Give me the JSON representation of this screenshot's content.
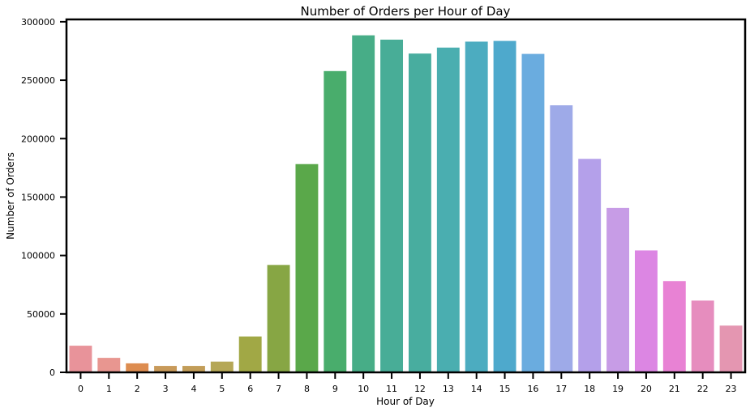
{
  "chart_data": {
    "type": "bar",
    "title": "Number of Orders per Hour of Day",
    "xlabel": "Hour of Day",
    "ylabel": "Number of Orders",
    "categories": [
      "0",
      "1",
      "2",
      "3",
      "4",
      "5",
      "6",
      "7",
      "8",
      "9",
      "10",
      "11",
      "12",
      "13",
      "14",
      "15",
      "16",
      "17",
      "18",
      "19",
      "20",
      "21",
      "22",
      "23"
    ],
    "values": [
      22800,
      12400,
      7700,
      5500,
      5500,
      9200,
      30700,
      91900,
      178200,
      257800,
      288400,
      284700,
      272800,
      277900,
      283000,
      283600,
      272500,
      228500,
      182700,
      140700,
      104300,
      78100,
      61400,
      40000
    ],
    "colors": [
      "#e8939a",
      "#e89690",
      "#dd8c50",
      "#c89a5a",
      "#c29d58",
      "#b5a756",
      "#a1a845",
      "#87a644",
      "#5aa84a",
      "#49ad6c",
      "#47ad87",
      "#48ad97",
      "#48ad9f",
      "#4aaeb0",
      "#4cacc0",
      "#4ea9cc",
      "#6aacdf",
      "#9eaae8",
      "#b4a0ea",
      "#c79ce6",
      "#dc86e3",
      "#e882d4",
      "#e68dbe",
      "#e496b1"
    ],
    "yticks": [
      "0",
      "50000",
      "100000",
      "150000",
      "200000",
      "250000",
      "300000"
    ],
    "ylim": [
      0,
      302000
    ],
    "grid": false
  }
}
